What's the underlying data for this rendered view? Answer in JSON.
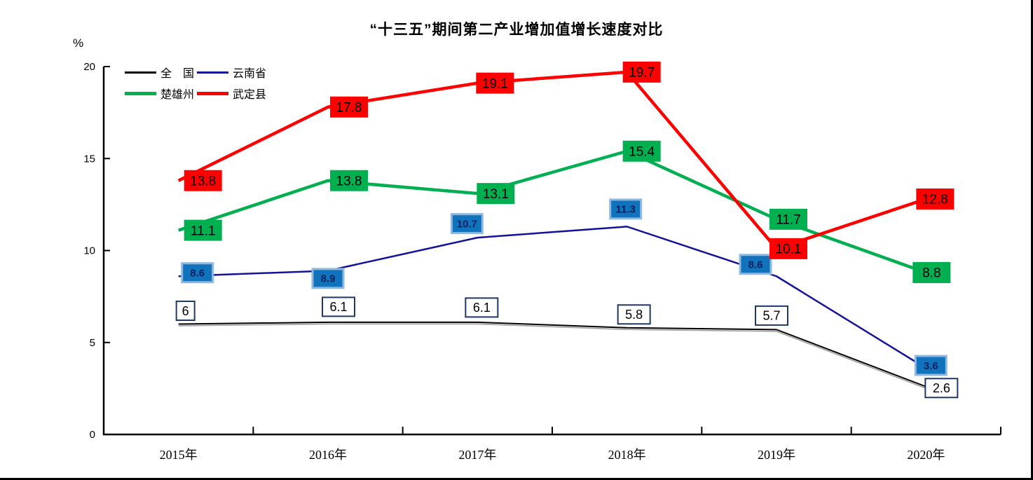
{
  "page": {
    "background": "#ffffff",
    "frame_border_color": "#000000"
  },
  "chart_data": {
    "type": "line",
    "title": "“十三五”期间第二产业增加值增长速度对比",
    "ylabel": "%",
    "xlabel": "",
    "ylim": [
      0,
      20
    ],
    "yticks": [
      0,
      5,
      10,
      15,
      20
    ],
    "grid": false,
    "legend_position": "top-left",
    "categories": [
      "2015年",
      "2016年",
      "2017年",
      "2018年",
      "2019年",
      "2020年"
    ],
    "series": [
      {
        "name": "全　国",
        "color": "#000000",
        "label_style": "white-box",
        "values": [
          6,
          6.1,
          6.1,
          5.8,
          5.7,
          2.6
        ],
        "label_dx": [
          10,
          15,
          6,
          10,
          -7,
          22
        ],
        "label_dy": [
          -19,
          -22,
          -21,
          -19,
          -20,
          2
        ]
      },
      {
        "name": "云南省",
        "color": "#12129A",
        "label_style": "blue-box",
        "values": [
          8.6,
          8.9,
          10.7,
          11.3,
          8.6,
          3.6
        ],
        "label_dx": [
          27,
          0,
          -15,
          -2,
          -30,
          7
        ],
        "label_dy": [
          -5,
          11,
          -20,
          -25,
          -17,
          -4
        ]
      },
      {
        "name": "楚雄州",
        "color": "#00B050",
        "label_style": "green-box",
        "values": [
          11.1,
          13.8,
          13.1,
          15.4,
          11.7,
          8.8
        ],
        "label_dx": [
          35,
          30,
          26,
          21,
          17,
          8
        ],
        "label_dy": [
          0,
          0,
          0,
          0,
          0,
          0
        ]
      },
      {
        "name": "武定县",
        "color": "#FF0000",
        "label_style": "red-box",
        "values": [
          13.8,
          17.8,
          19.1,
          19.7,
          10.1,
          12.8
        ],
        "label_dx": [
          35,
          30,
          25,
          21,
          17,
          13
        ],
        "label_dy": [
          0,
          0,
          0,
          0,
          0,
          0
        ]
      }
    ],
    "label_box_colors": {
      "white_box_fill": "#FFFFFF",
      "white_box_border": "#1F3864",
      "white_box_text": "#000000",
      "blue_box_fill": "#1173BC",
      "blue_box_border": "#8FB9E0",
      "blue_box_text": "#002060",
      "green_box_fill": "#00B050",
      "green_box_text": "#000000",
      "red_box_fill": "#FF0000",
      "red_box_text": "#000000"
    },
    "axis_color": "#000000"
  }
}
